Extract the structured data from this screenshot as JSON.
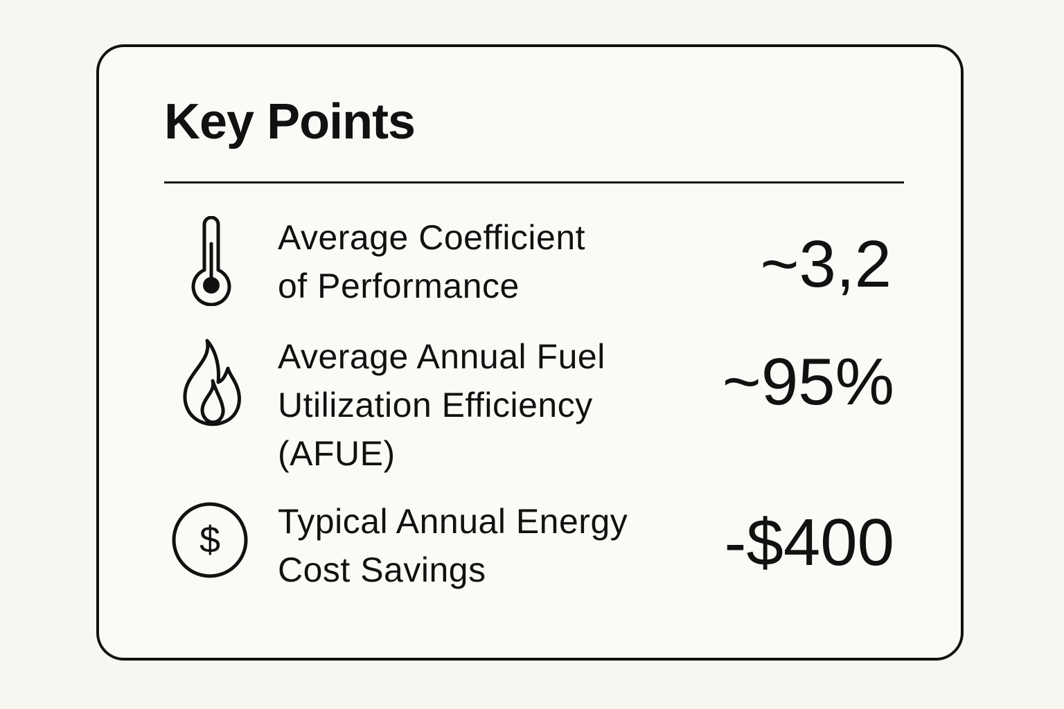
{
  "card": {
    "title": "Key Points",
    "items": [
      {
        "icon": "thermometer-icon",
        "label_lines": [
          "Average Coefficient",
          "of Performance"
        ],
        "value": "~3,2"
      },
      {
        "icon": "flame-icon",
        "label_lines": [
          "Average Annual Fuel",
          "Utilization Efficiency",
          "(AFUE)"
        ],
        "value": "~95%"
      },
      {
        "icon": "dollar-coin-icon",
        "label_lines": [
          "Typical Annual Energy",
          "Cost Savings"
        ],
        "value": "-$400"
      }
    ]
  }
}
